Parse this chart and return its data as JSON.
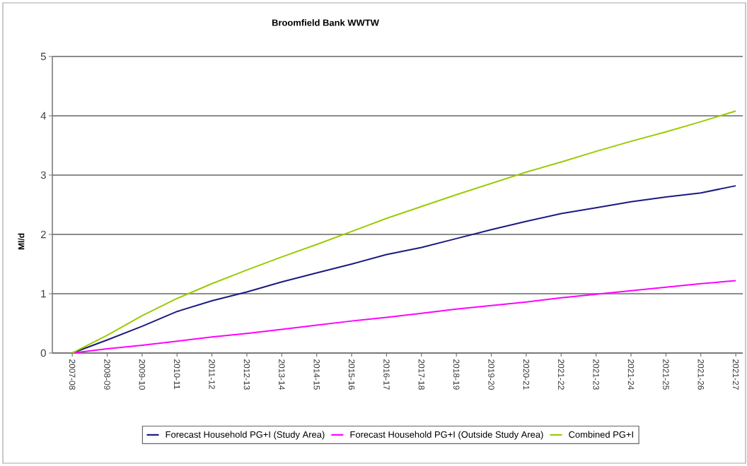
{
  "chart_data": {
    "type": "line",
    "title": "Broomfield Bank WWTW",
    "ylabel": "Ml/d",
    "categories": [
      "2007-08",
      "2008-09",
      "2009-10",
      "2010-11",
      "2011-12",
      "2012-13",
      "2013-14",
      "2014-15",
      "2015-16",
      "2016-17",
      "2017-18",
      "2018-19",
      "2019-20",
      "2020-21",
      "2021-22",
      "2021-23",
      "2021-24",
      "2021-25",
      "2021-26",
      "2021-27"
    ],
    "series": [
      {
        "name": "Forecast Household PG+I (Study Area)",
        "color": "#1a1a80",
        "values": [
          0,
          0.22,
          0.45,
          0.7,
          0.88,
          1.03,
          1.2,
          1.35,
          1.5,
          1.66,
          1.78,
          1.93,
          2.08,
          2.22,
          2.35,
          2.45,
          2.55,
          2.63,
          2.7,
          2.82
        ]
      },
      {
        "name": "Forecast Household PG+I (Outside Study Area)",
        "color": "#ff00ff",
        "values": [
          0,
          0.07,
          0.13,
          0.2,
          0.27,
          0.33,
          0.4,
          0.47,
          0.54,
          0.6,
          0.67,
          0.74,
          0.8,
          0.86,
          0.93,
          0.99,
          1.05,
          1.11,
          1.17,
          1.22
        ]
      },
      {
        "name": "Combined PG+I",
        "color": "#99cc00",
        "values": [
          0,
          0.3,
          0.63,
          0.92,
          1.17,
          1.4,
          1.62,
          1.83,
          2.05,
          2.27,
          2.47,
          2.67,
          2.86,
          3.05,
          3.22,
          3.4,
          3.57,
          3.73,
          3.9,
          4.08
        ]
      }
    ],
    "ylim": [
      0,
      5
    ],
    "yticks": [
      0,
      1,
      2,
      3,
      4,
      5
    ],
    "grid": "y",
    "legend": "bottom"
  }
}
